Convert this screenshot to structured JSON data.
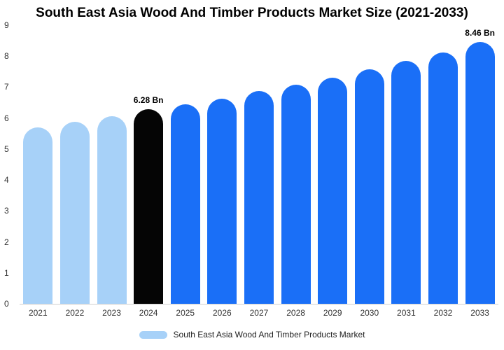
{
  "title": "South East Asia Wood And Timber Products Market Size (2021-2033)",
  "chart_data": {
    "type": "bar",
    "title": "South East Asia Wood And Timber Products Market Size (2021-2033)",
    "categories": [
      "2021",
      "2022",
      "2023",
      "2024",
      "2025",
      "2026",
      "2027",
      "2028",
      "2029",
      "2030",
      "2031",
      "2032",
      "2033"
    ],
    "values": [
      5.7,
      5.88,
      6.05,
      6.28,
      6.45,
      6.63,
      6.87,
      7.08,
      7.3,
      7.57,
      7.85,
      8.12,
      8.46
    ],
    "bar_colors": [
      "#a7d1f8",
      "#a7d1f8",
      "#a7d1f8",
      "#050505",
      "#1a6ff7",
      "#1a6ff7",
      "#1a6ff7",
      "#1a6ff7",
      "#1a6ff7",
      "#1a6ff7",
      "#1a6ff7",
      "#1a6ff7",
      "#1a6ff7"
    ],
    "data_labels": {
      "3": "6.28 Bn",
      "12": "8.46 Bn"
    },
    "ylim": [
      0,
      9
    ],
    "yticks": [
      "0",
      "1",
      "2",
      "3",
      "4",
      "5",
      "6",
      "7",
      "8",
      "9"
    ],
    "grid": false,
    "legend": {
      "label": "South East Asia Wood And Timber Products Market",
      "swatch_color": "#a7d1f8",
      "position": "bottom"
    }
  }
}
